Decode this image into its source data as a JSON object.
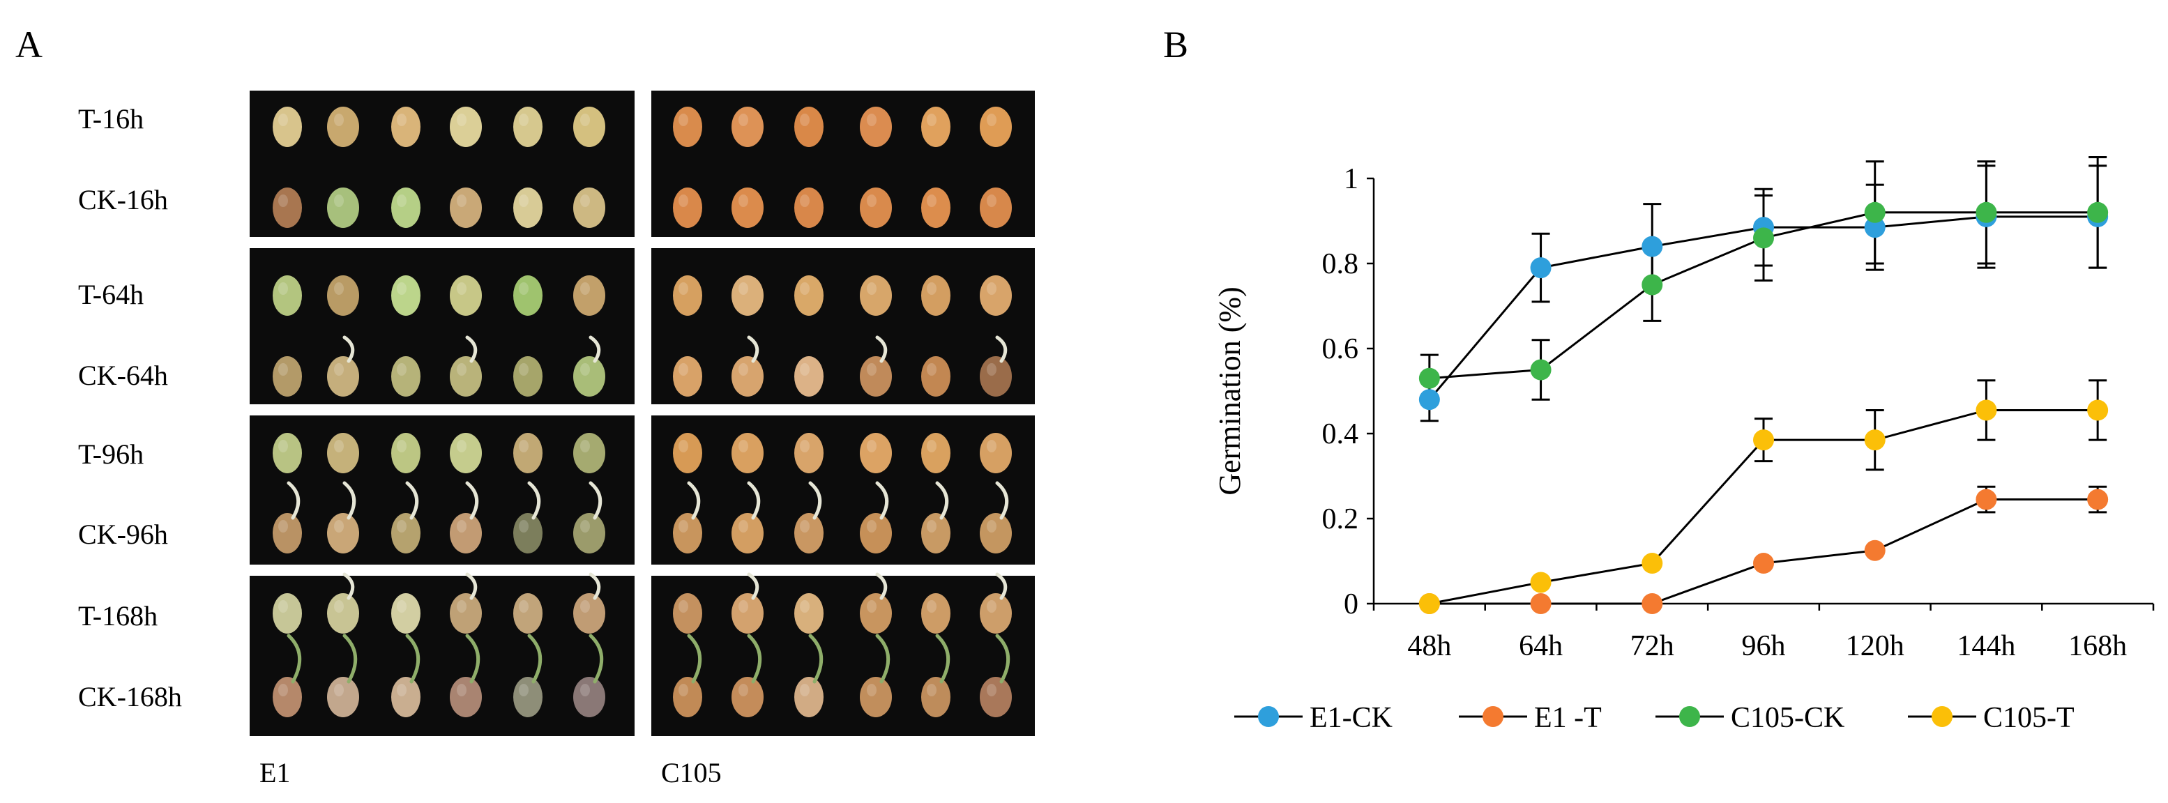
{
  "panel_a": {
    "label": "A",
    "row_labels": [
      "T-16h",
      "CK-16h",
      "T-64h",
      "CK-64h",
      "T-96h",
      "CK-96h",
      "T-168h",
      "CK-168h"
    ],
    "column_labels": [
      "E1",
      "C105"
    ]
  },
  "panel_b": {
    "label": "B"
  },
  "chart_data": {
    "type": "line",
    "title": "",
    "xlabel": "",
    "ylabel": "Germination (%)",
    "categories": [
      "48h",
      "64h",
      "72h",
      "96h",
      "120h",
      "144h",
      "168h"
    ],
    "ylim": [
      0,
      1
    ],
    "yticks": [
      0,
      0.2,
      0.4,
      0.6,
      0.8,
      1
    ],
    "ytick_labels": [
      "0",
      "0.2",
      "0.4",
      "0.6",
      "0.8",
      "1"
    ],
    "legend_position": "bottom",
    "series": [
      {
        "name": "E1-CK",
        "color": "#2e9fdc",
        "values": [
          0.48,
          0.79,
          0.84,
          0.885,
          0.885,
          0.91,
          0.91
        ],
        "errors": [
          0.05,
          0.08,
          0.1,
          0.09,
          0.1,
          0.12,
          0.12
        ]
      },
      {
        "name": "E1 -T",
        "color": "#f47a30",
        "values": [
          0,
          0,
          0,
          0.095,
          0.125,
          0.245,
          0.245
        ],
        "errors": [
          0,
          0,
          0,
          0,
          0,
          0.03,
          0.03
        ]
      },
      {
        "name": "C105-CK",
        "color": "#3db54a",
        "values": [
          0.53,
          0.55,
          0.75,
          0.86,
          0.92,
          0.92,
          0.92
        ],
        "errors": [
          0.055,
          0.07,
          0.085,
          0.1,
          0.12,
          0.12,
          0.13
        ]
      },
      {
        "name": "C105-T",
        "color": "#fbbf08",
        "values": [
          0,
          0.05,
          0.095,
          0.385,
          0.385,
          0.455,
          0.455
        ],
        "errors": [
          0,
          0,
          0,
          0.05,
          0.07,
          0.07,
          0.07
        ]
      }
    ]
  }
}
